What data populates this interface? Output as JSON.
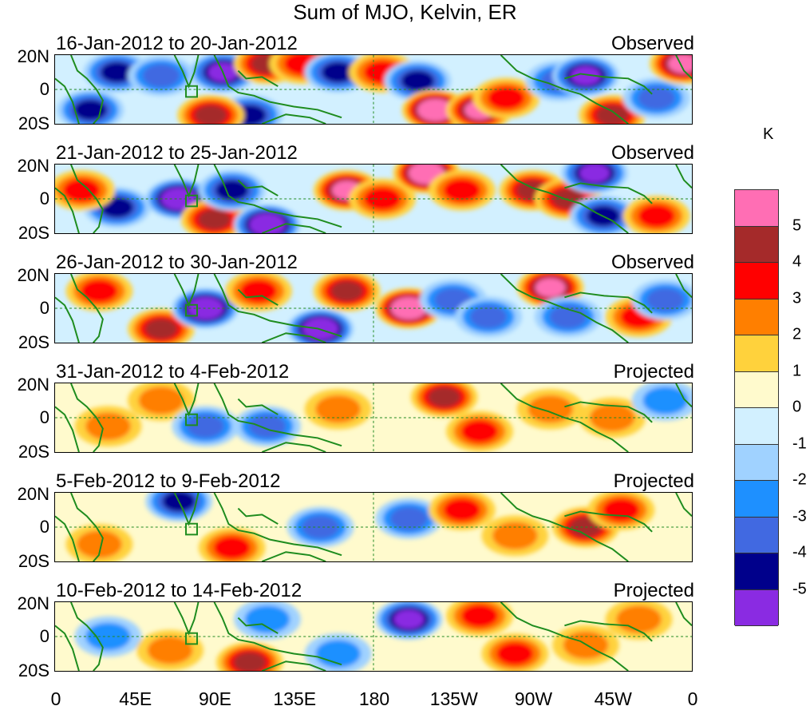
{
  "title": "Sum of MJO, Kelvin, ER",
  "units": "K",
  "chart_data": {
    "type": "heatmap",
    "title": "Sum of MJO, Kelvin, ER",
    "lat_ticks": [
      "20N",
      "0",
      "20S"
    ],
    "lon_ticks": [
      "0",
      "45E",
      "90E",
      "135E",
      "180",
      "135W",
      "90W",
      "45W",
      "0"
    ],
    "lon_range": [
      0,
      360
    ],
    "lat_range": [
      -20,
      20
    ],
    "colorbar": {
      "label": "K",
      "levels": [
        "5",
        "4",
        "3",
        "2",
        "1",
        "0",
        "-1",
        "-2",
        "-3",
        "-4",
        "-5"
      ],
      "colors": [
        "#ff6eb4",
        "#a52a2a",
        "#ff0000",
        "#ff7f00",
        "#ffd23c",
        "#fffacd",
        "#d2f0ff",
        "#a0d2ff",
        "#1e90ff",
        "#4169e1",
        "#00008b",
        "#8a2be2"
      ]
    },
    "panels": [
      {
        "date": "16-Jan-2012 to 20-Jan-2012",
        "status": "Observed",
        "anomalies": [
          [
            20,
            -12,
            -3
          ],
          [
            35,
            10,
            -3
          ],
          [
            60,
            8,
            -2
          ],
          [
            95,
            10,
            -4
          ],
          [
            120,
            15,
            3
          ],
          [
            140,
            15,
            2
          ],
          [
            160,
            10,
            -3
          ],
          [
            185,
            10,
            2
          ],
          [
            205,
            5,
            -3
          ],
          [
            215,
            -12,
            5
          ],
          [
            240,
            -12,
            4
          ],
          [
            255,
            -5,
            2
          ],
          [
            285,
            5,
            -2
          ],
          [
            300,
            8,
            -4
          ],
          [
            315,
            -15,
            3
          ],
          [
            340,
            -5,
            -2
          ],
          [
            355,
            15,
            4
          ],
          [
            110,
            -15,
            -3
          ],
          [
            88,
            -15,
            3
          ]
        ]
      },
      {
        "date": "21-Jan-2012 to 25-Jan-2012",
        "status": "Observed",
        "anomalies": [
          [
            35,
            -5,
            -3
          ],
          [
            70,
            0,
            -5
          ],
          [
            90,
            -12,
            3
          ],
          [
            100,
            5,
            -3
          ],
          [
            120,
            -15,
            -5
          ],
          [
            165,
            5,
            4
          ],
          [
            185,
            0,
            2
          ],
          [
            210,
            15,
            5
          ],
          [
            230,
            5,
            2
          ],
          [
            270,
            5,
            3
          ],
          [
            290,
            0,
            3
          ],
          [
            305,
            15,
            -4
          ],
          [
            310,
            -10,
            -3
          ],
          [
            340,
            -10,
            2
          ],
          [
            15,
            5,
            2
          ]
        ]
      },
      {
        "date": "26-Jan-2012 to 30-Jan-2012",
        "status": "Observed",
        "anomalies": [
          [
            25,
            10,
            2
          ],
          [
            60,
            -12,
            3
          ],
          [
            85,
            0,
            -5
          ],
          [
            115,
            10,
            2
          ],
          [
            150,
            -12,
            -5
          ],
          [
            165,
            10,
            3
          ],
          [
            200,
            0,
            5
          ],
          [
            225,
            5,
            -2
          ],
          [
            245,
            -5,
            -2
          ],
          [
            280,
            12,
            4
          ],
          [
            290,
            -5,
            -2
          ],
          [
            330,
            -5,
            2
          ],
          [
            345,
            5,
            -2
          ]
        ]
      },
      {
        "date": "31-Jan-2012 to 4-Feb-2012",
        "status": "Projected",
        "anomalies": [
          [
            30,
            -5,
            1
          ],
          [
            60,
            10,
            1
          ],
          [
            85,
            -5,
            -2
          ],
          [
            120,
            -5,
            -2
          ],
          [
            160,
            5,
            1
          ],
          [
            220,
            12,
            3
          ],
          [
            240,
            -8,
            2
          ],
          [
            280,
            5,
            1
          ],
          [
            315,
            0,
            1
          ],
          [
            345,
            10,
            -1
          ]
        ]
      },
      {
        "date": "5-Feb-2012 to 9-Feb-2012",
        "status": "Projected",
        "anomalies": [
          [
            25,
            -10,
            1
          ],
          [
            70,
            15,
            -3
          ],
          [
            100,
            -12,
            2
          ],
          [
            150,
            0,
            -2
          ],
          [
            200,
            5,
            -2
          ],
          [
            230,
            10,
            2
          ],
          [
            260,
            -5,
            1
          ],
          [
            300,
            0,
            3
          ],
          [
            320,
            10,
            2
          ]
        ]
      },
      {
        "date": "10-Feb-2012 to 14-Feb-2012",
        "status": "Projected",
        "anomalies": [
          [
            30,
            0,
            -1
          ],
          [
            65,
            -8,
            1
          ],
          [
            110,
            -15,
            3
          ],
          [
            120,
            10,
            -1
          ],
          [
            160,
            -10,
            -1
          ],
          [
            200,
            10,
            -4
          ],
          [
            240,
            12,
            2
          ],
          [
            260,
            -10,
            2
          ],
          [
            300,
            -5,
            1
          ],
          [
            330,
            10,
            1
          ]
        ]
      }
    ]
  }
}
